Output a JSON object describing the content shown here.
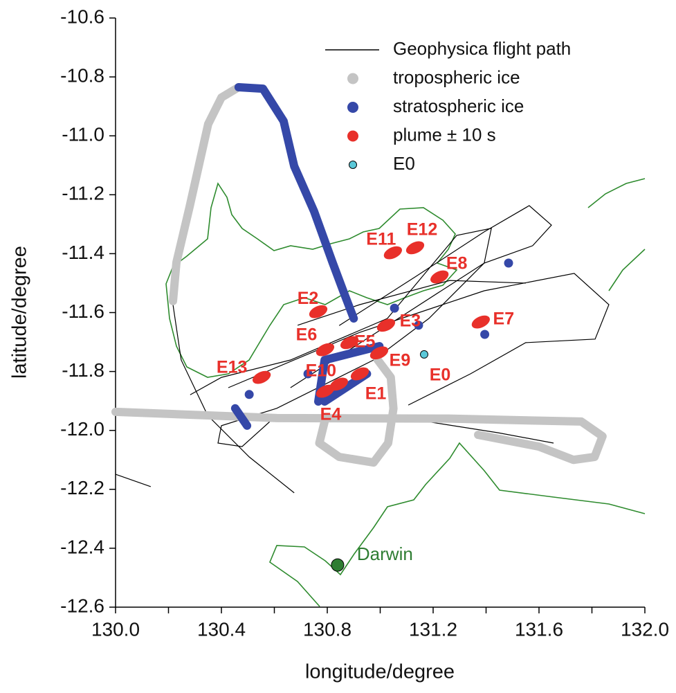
{
  "chart_data": {
    "type": "scatter",
    "x_label": "longitude/degree",
    "y_label": "latitude/degree",
    "xlim": [
      130.0,
      132.0
    ],
    "ylim": [
      -10.6,
      -12.6
    ],
    "xticks": [
      {
        "value": 130.0,
        "label": "130.0"
      },
      {
        "value": 130.4,
        "label": "130.4"
      },
      {
        "value": 130.8,
        "label": "130.8"
      },
      {
        "value": 131.2,
        "label": "131.2"
      },
      {
        "value": 131.6,
        "label": "131.6"
      },
      {
        "value": 132.0,
        "label": "132.0"
      }
    ],
    "xminor": [
      130.2,
      130.6,
      131.0,
      131.4,
      131.8
    ],
    "yticks": [
      -10.6,
      -10.8,
      {
        "value": -11.0,
        "label": "-11.0"
      },
      -11.2,
      -11.4,
      -11.6,
      -11.8,
      {
        "value": -12.0,
        "label": "-12.0"
      },
      -12.2,
      -12.4,
      -12.6
    ],
    "series": [
      {
        "name": "Geophysica flight path",
        "style": "line",
        "color": "#000000",
        "x": [
          130.217,
          130.248,
          130.348,
          130.505,
          130.675,
          null,
          130.0,
          130.133,
          null,
          130.845,
          131.132,
          131.393,
          131.563,
          131.647,
          131.576,
          131.393,
          131.027,
          130.661,
          null,
          130.426,
          130.923,
          131.393,
          131.733,
          131.864,
          131.812,
          131.55,
          131.341,
          131.106,
          null,
          130.282,
          130.4,
          130.661,
          131.027,
          131.289,
          131.42,
          131.393,
          131.184,
          130.975,
          130.609,
          130.4,
          130.387,
          130.478,
          130.609,
          null,
          130.688,
          130.923,
          131.263,
          131.55,
          null,
          131.027,
          131.446,
          131.655
        ],
        "y": [
          -11.573,
          -11.761,
          -11.949,
          -12.09,
          -12.212,
          null,
          -12.149,
          -12.191,
          null,
          -11.644,
          -11.479,
          -11.326,
          -11.237,
          -11.303,
          -11.373,
          -11.432,
          -11.644,
          -11.855,
          null,
          -11.855,
          -11.667,
          -11.526,
          -11.467,
          -11.573,
          -11.69,
          -11.702,
          -11.808,
          -11.914,
          null,
          -11.879,
          -11.82,
          -11.761,
          -11.62,
          -11.338,
          -11.314,
          -11.432,
          -11.62,
          -11.761,
          -11.925,
          -11.984,
          -12.043,
          -12.055,
          -11.949,
          null,
          -11.643,
          -11.573,
          -11.491,
          -11.5,
          null,
          -11.949,
          -12.008,
          -12.043
        ]
      },
      {
        "name": "tropospheric ice",
        "style": "markers",
        "color": "#c4c4c4",
        "x": [
          130.217,
          130.23,
          130.28,
          130.32,
          130.35,
          130.4,
          130.465,
          null,
          130.0,
          130.61,
          131.26,
          131.76,
          131.84,
          131.81,
          131.73,
          131.6,
          131.37,
          null,
          130.79,
          130.77,
          130.845,
          130.975,
          131.03,
          131.05,
          131.04,
          130.99
        ],
        "y": [
          -11.561,
          -11.43,
          -11.24,
          -11.08,
          -10.96,
          -10.87,
          -10.835,
          null,
          -11.937,
          -11.958,
          -11.96,
          -11.97,
          -12.02,
          -12.09,
          -12.1,
          -12.055,
          -12.015,
          null,
          -11.97,
          -12.043,
          -12.09,
          -12.109,
          -12.043,
          -11.926,
          -11.82,
          -11.76
        ]
      },
      {
        "name": "stratospheric ice",
        "style": "markers",
        "color": "#3548a8",
        "x": [
          130.465,
          130.557,
          130.635,
          130.675,
          130.75,
          130.82,
          130.86,
          130.9,
          null,
          131.485,
          null,
          131.395,
          null,
          131.145,
          null,
          131.054,
          null,
          130.727,
          null,
          130.505,
          null,
          130.452,
          130.497,
          null,
          130.766,
          130.79,
          130.997,
          null,
          130.95,
          130.79
        ],
        "y": [
          -10.835,
          -10.84,
          -10.95,
          -11.103,
          -11.256,
          -11.43,
          -11.526,
          -11.62,
          null,
          -11.432,
          null,
          -11.674,
          null,
          -11.643,
          null,
          -11.585,
          null,
          -11.808,
          null,
          -11.878,
          null,
          -11.925,
          -11.984,
          null,
          -11.902,
          -11.761,
          -11.714,
          null,
          -11.808,
          -11.902
        ]
      },
      {
        "name": "plume ± 10 s",
        "style": "blobs",
        "color": "#e8302a",
        "x": [
          130.923,
          130.766,
          131.022,
          130.792,
          130.884,
          130.792,
          131.38,
          131.224,
          130.996,
          130.844,
          131.048,
          131.132,
          130.552
        ],
        "y": [
          -11.808,
          -11.597,
          -11.643,
          -11.867,
          -11.702,
          -11.726,
          -11.632,
          -11.479,
          -11.737,
          -11.843,
          -11.397,
          -11.38,
          -11.82
        ],
        "point_labels": [
          "E1",
          "E2",
          "E3",
          "E4",
          "E5",
          "E6",
          "E7",
          "E8",
          "E9",
          "E10",
          "E11",
          "E12",
          "E13"
        ]
      },
      {
        "name": "E0",
        "style": "point",
        "color": "#5bc8d8",
        "x": [
          131.166
        ],
        "y": [
          -11.742
        ],
        "point_labels": [
          "E0"
        ]
      }
    ],
    "annotations": [
      {
        "text": "Darwin",
        "x": 130.839,
        "y": -12.457,
        "color": "#2e7d32"
      }
    ]
  }
}
